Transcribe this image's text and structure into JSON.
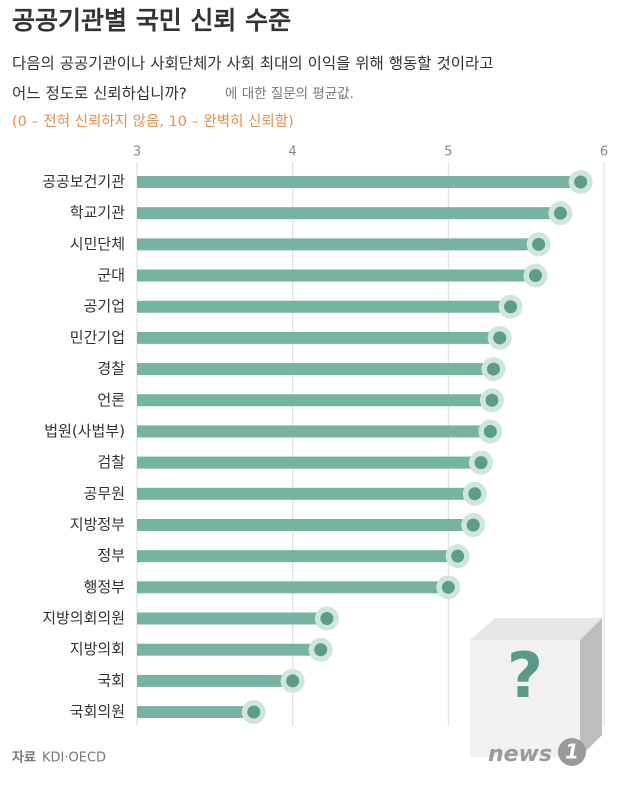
{
  "chart_data": {
    "type": "lollipop",
    "title": "공공기관별 국민 신뢰 수준",
    "subtitle": [
      "다음의 공공기관이나 사회단체가 사회 최대의 이익을 위해 행동할 것이라고",
      "어느 정도로 신뢰하십니까?"
    ],
    "subtitle_note": "에 대한 질문의 평균값.",
    "scale_note": "(0 – 전혀 신뢰하지 않음, 10 – 완벽히 신뢰함)",
    "categories": [
      "공공보건기관",
      "학교기관",
      "시민단체",
      "군대",
      "공기업",
      "민간기업",
      "경찰",
      "언론",
      "법원(사법부)",
      "검찰",
      "공무원",
      "지방정부",
      "정부",
      "행정부",
      "지방의회의원",
      "지방의회",
      "국회",
      "국회의원"
    ],
    "values": [
      5.85,
      5.72,
      5.58,
      5.56,
      5.4,
      5.33,
      5.29,
      5.28,
      5.27,
      5.21,
      5.17,
      5.16,
      5.06,
      5.0,
      4.22,
      4.18,
      4.0,
      3.75
    ],
    "color": "#76b3a3",
    "xlim": [
      3,
      6
    ],
    "xticks": [
      3,
      4,
      5,
      6
    ],
    "grid": true,
    "source_label": "자료",
    "source": "KDI·OECD",
    "illustration_text": "?",
    "logo": [
      "news",
      "1"
    ]
  }
}
